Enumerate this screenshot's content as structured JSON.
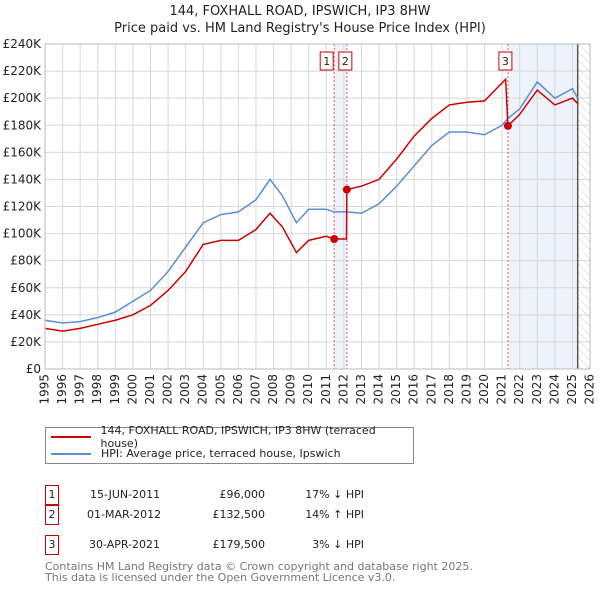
{
  "title": "144, FOXHALL ROAD, IPSWICH, IP3 8HW",
  "subtitle": "Price paid vs. HM Land Registry's House Price Index (HPI)",
  "chart_data": {
    "type": "line",
    "xlim": [
      1995,
      2026
    ],
    "ylim": [
      0,
      240000
    ],
    "x_ticks": [
      "1995",
      "1996",
      "1997",
      "1998",
      "1999",
      "2000",
      "2001",
      "2002",
      "2003",
      "2004",
      "2005",
      "2006",
      "2007",
      "2008",
      "2009",
      "2010",
      "2011",
      "2012",
      "2013",
      "2014",
      "2015",
      "2016",
      "2017",
      "2018",
      "2019",
      "2020",
      "2021",
      "2022",
      "2023",
      "2024",
      "2025",
      "2026"
    ],
    "y_ticks": [
      {
        "v": 0,
        "label": "£0"
      },
      {
        "v": 20000,
        "label": "£20K"
      },
      {
        "v": 40000,
        "label": "£40K"
      },
      {
        "v": 60000,
        "label": "£60K"
      },
      {
        "v": 80000,
        "label": "£80K"
      },
      {
        "v": 100000,
        "label": "£100K"
      },
      {
        "v": 120000,
        "label": "£120K"
      },
      {
        "v": 140000,
        "label": "£140K"
      },
      {
        "v": 160000,
        "label": "£160K"
      },
      {
        "v": 180000,
        "label": "£180K"
      },
      {
        "v": 200000,
        "label": "£200K"
      },
      {
        "v": 220000,
        "label": "£220K"
      },
      {
        "v": 240000,
        "label": "£240K"
      }
    ],
    "grid": true,
    "series": [
      {
        "name": "144, FOXHALL ROAD, IPSWICH, IP3 8HW (terraced house)",
        "color": "#cc0000",
        "x": [
          1995,
          1996,
          1997,
          1998,
          1999,
          2000,
          2001,
          2002,
          2003,
          2003.5,
          2004,
          2005,
          2006,
          2007,
          2007.8,
          2008.5,
          2009.3,
          2010,
          2011,
          2011.45,
          2012.15,
          2012.17,
          2013,
          2014,
          2015,
          2016,
          2017,
          2018,
          2019,
          2020,
          2021.2,
          2021.33,
          2022,
          2023,
          2024,
          2025,
          2025.3
        ],
        "y": [
          30000,
          28000,
          30000,
          33000,
          36000,
          40000,
          47000,
          58000,
          72000,
          82000,
          92000,
          95000,
          95000,
          103000,
          115000,
          105000,
          86000,
          95000,
          98000,
          96000,
          96000,
          132500,
          135000,
          140000,
          155000,
          172000,
          185000,
          195000,
          197000,
          198000,
          214000,
          179500,
          188000,
          206000,
          195000,
          200000,
          196000
        ]
      },
      {
        "name": "HPI: Average price, terraced house, Ipswich",
        "color": "#5b8fd4",
        "x": [
          1995,
          1996,
          1997,
          1998,
          1999,
          2000,
          2001,
          2002,
          2003,
          2004,
          2005,
          2006,
          2007,
          2007.8,
          2008.5,
          2009.3,
          2010,
          2011,
          2011.45,
          2012.17,
          2013,
          2014,
          2015,
          2016,
          2017,
          2018,
          2019,
          2020,
          2021,
          2021.33,
          2022,
          2023,
          2024,
          2025,
          2025.3
        ],
        "y": [
          36000,
          34000,
          35000,
          38000,
          42000,
          50000,
          58000,
          72000,
          90000,
          108000,
          114000,
          116000,
          125000,
          140000,
          128000,
          108000,
          118000,
          118000,
          116000,
          116000,
          115000,
          122000,
          135000,
          150000,
          165000,
          175000,
          175000,
          173000,
          180000,
          185000,
          192000,
          212000,
          200000,
          207000,
          200000
        ]
      }
    ],
    "sales": [
      {
        "label": "1",
        "x": 2011.45,
        "price": 96000,
        "date": "15-JUN-2011",
        "price_text": "£96,000",
        "hpi_text": "17% ↓ HPI"
      },
      {
        "label": "2",
        "x": 2012.17,
        "price": 132500,
        "date": "01-MAR-2012",
        "price_text": "£132,500",
        "hpi_text": "14% ↑ HPI"
      },
      {
        "label": "3",
        "x": 2021.33,
        "price": 179500,
        "date": "30-APR-2021",
        "price_text": "£179,500",
        "hpi_text": "3% ↓ HPI"
      }
    ],
    "data_end": 2025.3
  },
  "footer": [
    "Contains HM Land Registry data © Crown copyright and database right 2025.",
    "This data is licensed under the Open Government Licence v3.0."
  ]
}
